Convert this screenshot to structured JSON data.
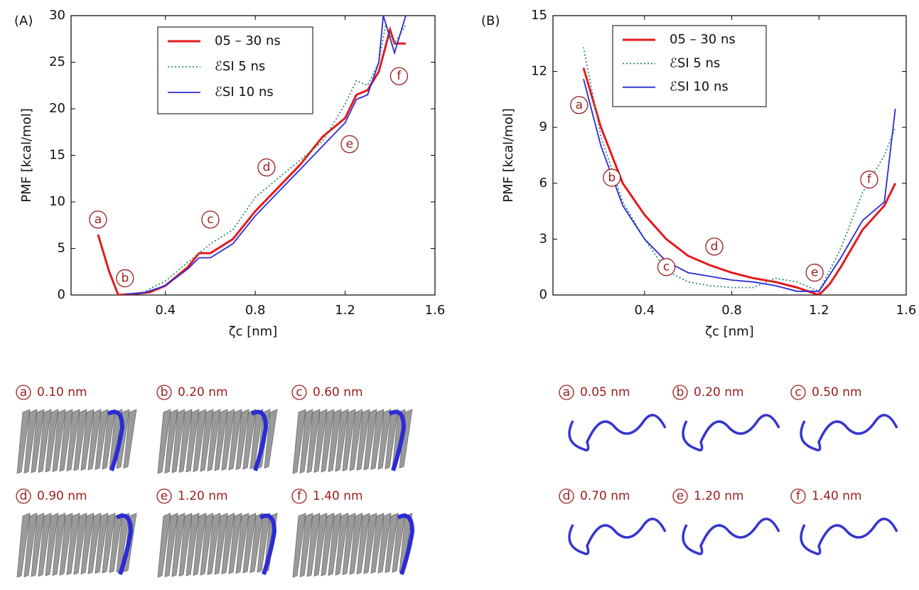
{
  "chart_data": [
    {
      "type": "line",
      "panel_label": "(A)",
      "x_label": "ζc [nm]",
      "y_label": "PMF  [kcal/mol]",
      "xlim": [
        -0.02,
        1.6
      ],
      "ylim": [
        0,
        30
      ],
      "xticks": [
        0.4,
        0.8,
        1.2,
        1.6
      ],
      "yticks": [
        0,
        5,
        10,
        15,
        20,
        25,
        30
      ],
      "series": [
        {
          "name": "05 – 30 ns",
          "color": "#e41a1c",
          "style": "solid",
          "x": [
            0.1,
            0.15,
            0.19,
            0.25,
            0.33,
            0.4,
            0.5,
            0.55,
            0.6,
            0.7,
            0.8,
            0.9,
            1.0,
            1.1,
            1.2,
            1.25,
            1.3,
            1.35,
            1.4,
            1.42,
            1.47
          ],
          "values": [
            6.5,
            2.5,
            0,
            0.1,
            0.3,
            1,
            3,
            4.5,
            4.5,
            6,
            9,
            11.5,
            14,
            17,
            19,
            21.5,
            22,
            24,
            28.5,
            27,
            27
          ]
        },
        {
          "name": "ℰSI 5 ns",
          "color": "#2e8b6f",
          "style": "dotted",
          "x": [
            0.22,
            0.3,
            0.4,
            0.5,
            0.6,
            0.7,
            0.8,
            0.9,
            1.0,
            1.1,
            1.2,
            1.25,
            1.3,
            1.35,
            1.38,
            1.42,
            1.47
          ],
          "values": [
            0.1,
            0.3,
            1.5,
            3.5,
            5.5,
            7,
            10.5,
            12.5,
            14.5,
            16.5,
            20.5,
            23,
            22.5,
            25,
            29,
            27,
            29
          ]
        },
        {
          "name": "ℰSI 10 ns",
          "color": "#2b2bd6",
          "style": "solid",
          "x": [
            0.22,
            0.3,
            0.4,
            0.5,
            0.55,
            0.6,
            0.7,
            0.8,
            0.9,
            1.0,
            1.1,
            1.2,
            1.25,
            1.3,
            1.35,
            1.37,
            1.42,
            1.47
          ],
          "values": [
            0.1,
            0.2,
            1,
            2.8,
            4,
            4,
            5.5,
            8.5,
            11,
            13.5,
            16,
            18.5,
            21,
            21.5,
            25,
            30,
            26,
            30
          ]
        }
      ],
      "annotations": [
        {
          "text": "a",
          "x": 0.1,
          "y": 8.1
        },
        {
          "text": "b",
          "x": 0.22,
          "y": 1.8
        },
        {
          "text": "c",
          "x": 0.6,
          "y": 8.1
        },
        {
          "text": "d",
          "x": 0.85,
          "y": 13.7
        },
        {
          "text": "e",
          "x": 1.22,
          "y": 16.2
        },
        {
          "text": "f",
          "x": 1.44,
          "y": 23.5
        }
      ]
    },
    {
      "type": "line",
      "panel_label": "(B)",
      "x_label": "ζc [nm]",
      "y_label": "PMF  [kcal/mol]",
      "xlim": [
        -0.02,
        1.6
      ],
      "ylim": [
        0,
        15
      ],
      "xticks": [
        0.4,
        0.8,
        1.2,
        1.6
      ],
      "yticks": [
        0,
        3,
        6,
        9,
        12,
        15
      ],
      "series": [
        {
          "name": "05 – 30 ns",
          "color": "#e41a1c",
          "style": "solid",
          "x": [
            0.12,
            0.2,
            0.3,
            0.4,
            0.5,
            0.6,
            0.7,
            0.8,
            0.9,
            1.0,
            1.1,
            1.2,
            1.25,
            1.3,
            1.4,
            1.5,
            1.55
          ],
          "values": [
            12.2,
            9,
            6,
            4.3,
            3,
            2.1,
            1.6,
            1.2,
            0.9,
            0.7,
            0.4,
            0,
            0.6,
            1.5,
            3.5,
            4.8,
            6
          ]
        },
        {
          "name": "ℰSI 5 ns",
          "color": "#2e8b6f",
          "style": "dotted",
          "x": [
            0.12,
            0.2,
            0.3,
            0.4,
            0.5,
            0.6,
            0.7,
            0.8,
            0.9,
            1.0,
            1.1,
            1.2,
            1.3,
            1.4,
            1.5,
            1.55
          ],
          "values": [
            13.3,
            8.5,
            5,
            3,
            1.3,
            0.7,
            0.5,
            0.4,
            0.4,
            0.9,
            0.7,
            0.2,
            2.5,
            5.5,
            7.5,
            9
          ]
        },
        {
          "name": "ℰSI 10 ns",
          "color": "#2b2bd6",
          "style": "solid",
          "x": [
            0.12,
            0.2,
            0.3,
            0.4,
            0.5,
            0.6,
            0.7,
            0.8,
            0.9,
            1.0,
            1.1,
            1.2,
            1.3,
            1.4,
            1.5,
            1.55
          ],
          "values": [
            11.6,
            8,
            4.8,
            3,
            1.8,
            1.2,
            1,
            0.8,
            0.7,
            0.5,
            0.2,
            0.2,
            2,
            4,
            5,
            10
          ]
        }
      ],
      "annotations": [
        {
          "text": "a",
          "x": 0.1,
          "y": 10.2
        },
        {
          "text": "b",
          "x": 0.25,
          "y": 6.3
        },
        {
          "text": "c",
          "x": 0.5,
          "y": 1.5
        },
        {
          "text": "d",
          "x": 0.72,
          "y": 2.6
        },
        {
          "text": "e",
          "x": 1.18,
          "y": 1.2
        },
        {
          "text": "f",
          "x": 1.43,
          "y": 6.2
        }
      ]
    }
  ],
  "snapshots_A": [
    {
      "letter": "a",
      "label": "0.10 nm"
    },
    {
      "letter": "b",
      "label": "0.20 nm"
    },
    {
      "letter": "c",
      "label": "0.60 nm"
    },
    {
      "letter": "d",
      "label": "0.90 nm"
    },
    {
      "letter": "e",
      "label": "1.20 nm"
    },
    {
      "letter": "f",
      "label": "1.40 nm"
    }
  ],
  "snapshots_B": [
    {
      "letter": "a",
      "label": "0.05 nm"
    },
    {
      "letter": "b",
      "label": "0.20 nm"
    },
    {
      "letter": "c",
      "label": "0.50 nm"
    },
    {
      "letter": "d",
      "label": "0.70 nm"
    },
    {
      "letter": "e",
      "label": "1.20 nm"
    },
    {
      "letter": "f",
      "label": "1.40 nm"
    }
  ]
}
